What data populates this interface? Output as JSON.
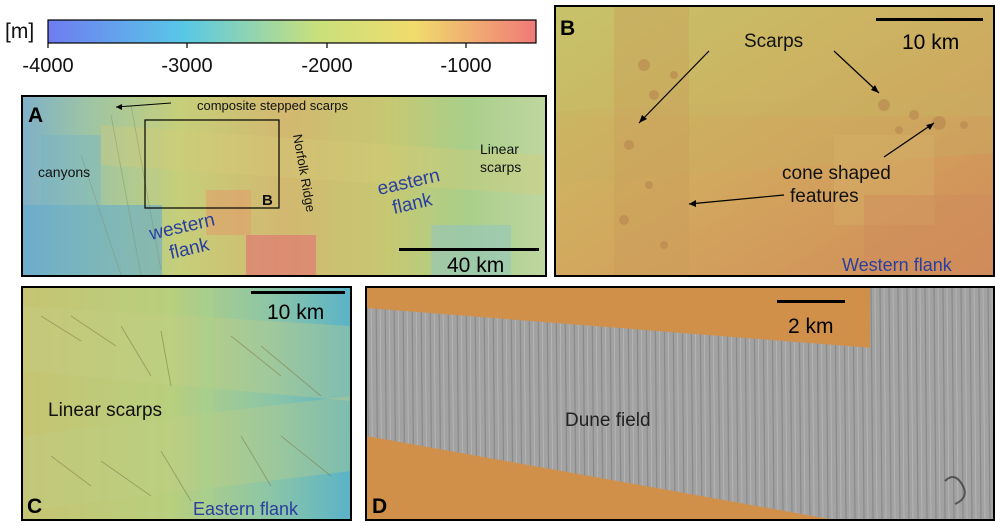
{
  "colorbar": {
    "unit": "[m]",
    "ticks": [
      "-4000",
      "-3000",
      "-2000",
      "-1000"
    ],
    "range_m": [
      -4000,
      -500
    ],
    "colors": [
      "#6f7cf2",
      "#58c8e6",
      "#d8e070",
      "#f07a78"
    ]
  },
  "panels": {
    "A": {
      "letter": "A",
      "labels": {
        "composite": "composite stepped scarps",
        "canyons": "canyons",
        "norfolk": "Norfolk Ridge",
        "western1": "western",
        "western2": "flank",
        "eastern1": "eastern",
        "eastern2": "flank",
        "linear1": "Linear",
        "linear2": "scarps",
        "inset_letter": "B"
      },
      "scalebar": "40 km"
    },
    "B": {
      "letter": "B",
      "labels": {
        "scarps": "Scarps",
        "cone1": "cone shaped",
        "cone2": "features",
        "region": "Western flank"
      },
      "scalebar": "10 km"
    },
    "C": {
      "letter": "C",
      "labels": {
        "linear": "Linear scarps",
        "region": "Eastern flank"
      },
      "scalebar": "10 km"
    },
    "D": {
      "letter": "D",
      "labels": {
        "dune": "Dune field"
      },
      "scalebar": "2 km"
    }
  },
  "colors": {
    "flank_label": "#2a3fa0",
    "dune_gray": "#9e9e9e",
    "sediment_orange": "#d2924c"
  }
}
